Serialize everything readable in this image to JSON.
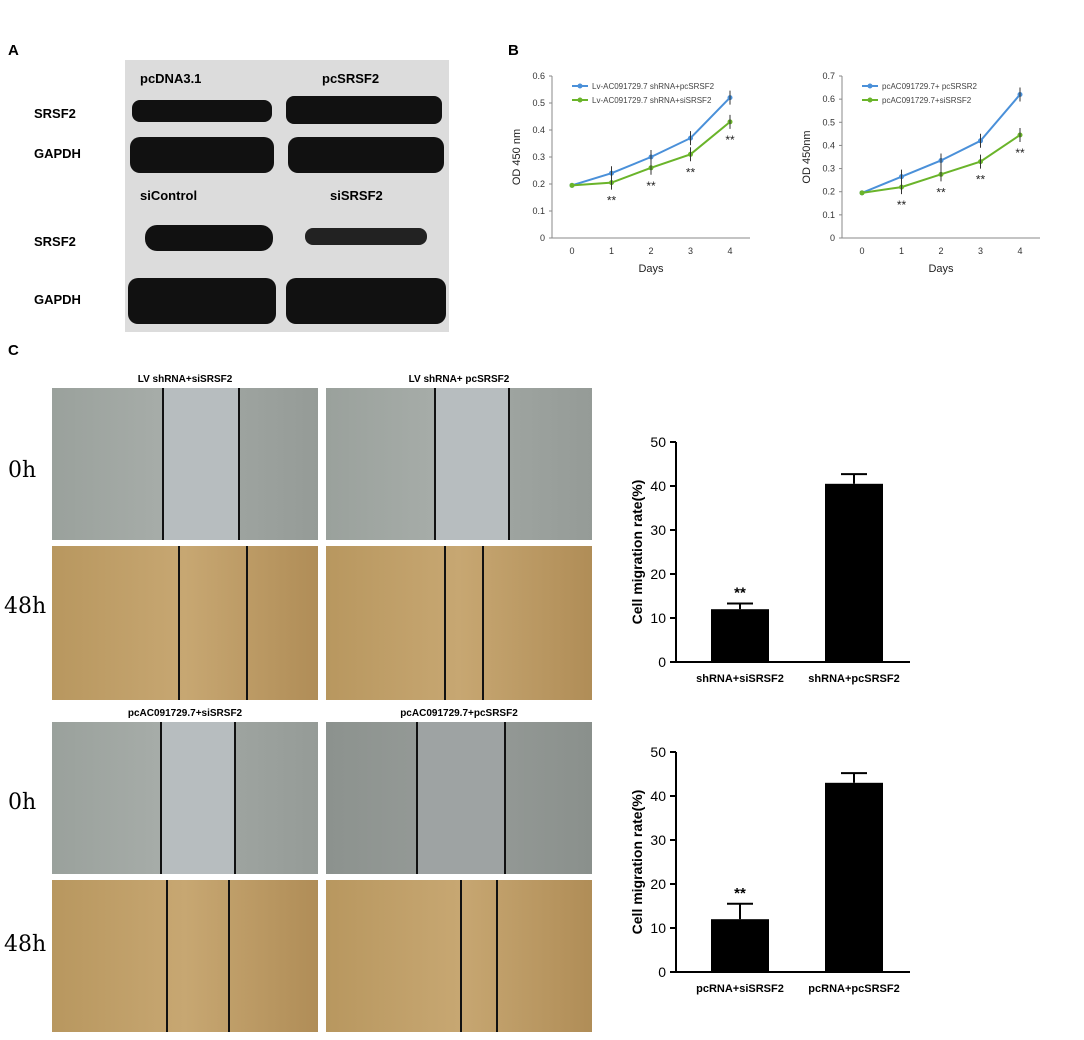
{
  "panels": {
    "a": "A",
    "b": "B",
    "c": "C"
  },
  "blot": {
    "top_headers": [
      "pcDNA3.1",
      "pcSRSF2"
    ],
    "bottom_headers": [
      "siControl",
      "siSRSF2"
    ],
    "rows": [
      "SRSF2",
      "GAPDH",
      "SRSF2",
      "GAPDH"
    ]
  },
  "scratch": {
    "titles": [
      "LV shRNA+siSRSF2",
      "LV shRNA+ pcSRSF2",
      "pcAC091729.7+siSRSF2",
      "pcAC091729.7+pcSRSF2"
    ],
    "time_labels": [
      "0h",
      "48h",
      "0h",
      "48h"
    ]
  },
  "chart_data": [
    {
      "type": "line",
      "x": [
        0,
        1,
        2,
        3,
        4
      ],
      "xlabel": "Days",
      "ylabel": "OD 450 nm",
      "ylim": [
        0,
        0.6
      ],
      "yticks": [
        "0",
        "0.1",
        "0.2",
        "0.3",
        "0.4",
        "0.5",
        "0.6"
      ],
      "series": [
        {
          "name": "Lv-AC091729.7 shRNA+pcSRSF2",
          "values": [
            0.195,
            0.24,
            0.3,
            0.37,
            0.52
          ],
          "color": "#4a90d9"
        },
        {
          "name": "Lv-AC091729.7 shRNA+siSRSF2",
          "values": [
            0.195,
            0.205,
            0.26,
            0.31,
            0.43
          ],
          "color": "#6ab42a"
        }
      ],
      "annotations": [
        "**",
        "**",
        "**",
        "**"
      ]
    },
    {
      "type": "line",
      "x": [
        0,
        1,
        2,
        3,
        4
      ],
      "xlabel": "Days",
      "ylabel": "OD 450nm",
      "ylim": [
        0,
        0.7
      ],
      "yticks": [
        "0",
        "0.1",
        "0.2",
        "0.3",
        "0.4",
        "0.5",
        "0.6",
        "0.7"
      ],
      "series": [
        {
          "name": "pcAC091729.7+ pcSRSR2",
          "values": [
            0.195,
            0.265,
            0.335,
            0.42,
            0.62
          ],
          "color": "#4a90d9"
        },
        {
          "name": "pcAC091729.7+siSRSF2",
          "values": [
            0.195,
            0.22,
            0.275,
            0.33,
            0.445
          ],
          "color": "#6ab42a"
        }
      ],
      "annotations": [
        "**",
        "**",
        "**",
        "**"
      ]
    },
    {
      "type": "bar",
      "categories": [
        "shRNA+siSRSF2",
        "shRNA+pcSRSF2"
      ],
      "values": [
        12,
        40.5
      ],
      "errors": [
        1.3,
        2.2
      ],
      "ylabel": "Cell migration rate(%)",
      "ylim": [
        0,
        50
      ],
      "yticks": [
        "0",
        "10",
        "20",
        "30",
        "40",
        "50"
      ],
      "annotations": [
        "**",
        ""
      ]
    },
    {
      "type": "bar",
      "categories": [
        "pcRNA+siSRSF2",
        "pcRNA+pcSRSF2"
      ],
      "values": [
        12,
        43
      ],
      "errors": [
        3.5,
        2.2
      ],
      "ylabel": "Cell migration rate(%)",
      "ylim": [
        0,
        50
      ],
      "yticks": [
        "0",
        "10",
        "20",
        "30",
        "40",
        "50"
      ],
      "annotations": [
        "**",
        ""
      ]
    }
  ]
}
